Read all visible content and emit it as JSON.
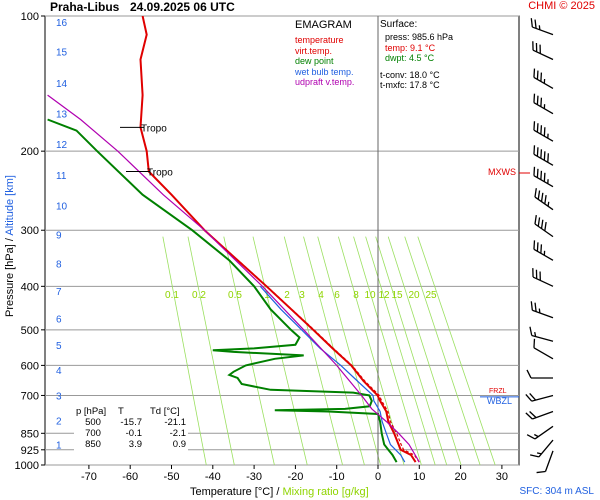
{
  "header": {
    "station": "Praha-Libus",
    "datetime": "24.09.2025 06 UTC",
    "credit": "CHMI © 2025"
  },
  "legend": {
    "title": "EMAGRAM",
    "items": [
      {
        "label": "temperature",
        "color": "#e00000"
      },
      {
        "label": "virt.temp.",
        "color": "#e00000"
      },
      {
        "label": "dew point",
        "color": "#008000"
      },
      {
        "label": "wet bulb temp.",
        "color": "#2060e0"
      },
      {
        "label": "udpraft v.temp.",
        "color": "#b000b0"
      }
    ]
  },
  "surface": {
    "title": "Surface:",
    "lines": [
      {
        "text": "press: 985.6 hPa",
        "color": "#000000"
      },
      {
        "text": "temp: 9.1 °C",
        "color": "#e00000"
      },
      {
        "text": "dwpt: 4.5 °C",
        "color": "#008000"
      },
      {
        "text": "t-conv: 18.0 °C",
        "color": "#000000"
      },
      {
        "text": "t-mxfc: 17.8 °C",
        "color": "#000000"
      }
    ]
  },
  "table": {
    "headers": [
      "p [hPa]",
      "T",
      "Td [°C]"
    ],
    "rows": [
      [
        "500",
        "-15.7",
        "-21.1"
      ],
      [
        "700",
        "-0.1",
        "-2.1"
      ],
      [
        "850",
        "3.9",
        "0.9"
      ]
    ]
  },
  "labels": {
    "y_axis_pressure": "Pressure [hPa]",
    "y_axis_sep": " / ",
    "y_axis_altitude": "Altitude [km]",
    "x_axis_temp": "Temperature [°C]",
    "x_axis_sep": " / ",
    "x_axis_mix": "Mixing ratio [g/kg]",
    "sfc": "SFC: 304 m ASL",
    "mxws": "MXWS",
    "wbzl": "WBZL",
    "frzl": "FRZL"
  },
  "chart_data": {
    "type": "line",
    "title": "",
    "xlabel": "Temperature [°C] / Mixing ratio [g/kg]",
    "ylabel": "Pressure [hPa] / Altitude [km]",
    "y_scale": "log",
    "xlim": [
      -80,
      35
    ],
    "ylim": [
      1000,
      100
    ],
    "x_ticks": [
      -70,
      -60,
      -50,
      -40,
      -30,
      -20,
      -10,
      0,
      10,
      20,
      30
    ],
    "pressure_ticks": [
      100,
      200,
      300,
      400,
      500,
      600,
      700,
      850,
      925,
      1000
    ],
    "altitude_km_ticks": [
      1,
      2,
      3,
      4,
      5,
      6,
      7,
      8,
      9,
      10,
      11,
      12,
      13,
      14,
      15,
      16
    ],
    "altitude_pressure": [
      900,
      795,
      700,
      615,
      540,
      472,
      410,
      356,
      307,
      264,
      226,
      193,
      165,
      141,
      120,
      103
    ],
    "mixing_ratio_labels": [
      "0.1",
      "0.2",
      "0.5",
      "1",
      "2",
      "3",
      "4",
      "6",
      "8",
      "10",
      "12",
      "15",
      "20",
      "25"
    ],
    "mixing_ratio_values": [
      0.1,
      0.2,
      0.5,
      1,
      2,
      3,
      4,
      6,
      8,
      10,
      12,
      15,
      20,
      25
    ],
    "tropopause": [
      {
        "label": "Tropo",
        "pressure": 177
      },
      {
        "label": "Tropo",
        "pressure": 222
      }
    ],
    "series": [
      {
        "name": "temperature",
        "color": "#e00000",
        "points": [
          [
            985,
            9.1
          ],
          [
            950,
            8.0
          ],
          [
            925,
            5.5
          ],
          [
            900,
            5.0
          ],
          [
            850,
            3.9
          ],
          [
            800,
            2.5
          ],
          [
            760,
            2.0
          ],
          [
            720,
            0.5
          ],
          [
            700,
            -0.1
          ],
          [
            650,
            -3.5
          ],
          [
            600,
            -6.5
          ],
          [
            550,
            -11
          ],
          [
            500,
            -15.7
          ],
          [
            450,
            -21
          ],
          [
            400,
            -27
          ],
          [
            350,
            -34
          ],
          [
            300,
            -42
          ],
          [
            250,
            -50
          ],
          [
            222,
            -55.5
          ],
          [
            200,
            -56
          ],
          [
            177,
            -57.5
          ],
          [
            150,
            -57
          ],
          [
            125,
            -57.5
          ],
          [
            110,
            -56
          ],
          [
            100,
            -57
          ]
        ]
      },
      {
        "name": "virt.temp.",
        "color": "#e00000",
        "points": [
          [
            985,
            10
          ],
          [
            950,
            8.8
          ],
          [
            925,
            6.2
          ],
          [
            900,
            5.6
          ],
          [
            850,
            4.5
          ],
          [
            800,
            3.0
          ],
          [
            760,
            2.4
          ],
          [
            720,
            0.9
          ],
          [
            700,
            0.3
          ],
          [
            650,
            -3.2
          ],
          [
            600,
            -6.3
          ],
          [
            550,
            -10.8
          ],
          [
            500,
            -15.5
          ],
          [
            450,
            -20.9
          ],
          [
            400,
            -26.9
          ],
          [
            350,
            -33.9
          ],
          [
            300,
            -42
          ]
        ]
      },
      {
        "name": "dew point",
        "color": "#008000",
        "points": [
          [
            985,
            4.5
          ],
          [
            950,
            3.5
          ],
          [
            925,
            2.5
          ],
          [
            900,
            1.5
          ],
          [
            850,
            0.9
          ],
          [
            800,
            0.5
          ],
          [
            770,
            0.0
          ],
          [
            760,
            -12
          ],
          [
            755,
            -25
          ],
          [
            750,
            -8
          ],
          [
            740,
            -2
          ],
          [
            720,
            -1.5
          ],
          [
            700,
            -2.1
          ],
          [
            690,
            -6
          ],
          [
            680,
            -26
          ],
          [
            660,
            -33
          ],
          [
            640,
            -34
          ],
          [
            630,
            -36
          ],
          [
            620,
            -35
          ],
          [
            600,
            -32
          ],
          [
            580,
            -25
          ],
          [
            570,
            -18
          ],
          [
            560,
            -35
          ],
          [
            555,
            -40
          ],
          [
            550,
            -30
          ],
          [
            540,
            -20
          ],
          [
            520,
            -19
          ],
          [
            500,
            -21.1
          ],
          [
            450,
            -26
          ],
          [
            400,
            -30
          ],
          [
            350,
            -36
          ],
          [
            300,
            -45
          ],
          [
            250,
            -57
          ],
          [
            200,
            -68
          ],
          [
            180,
            -73
          ],
          [
            170,
            -80
          ]
        ]
      },
      {
        "name": "wet bulb temp.",
        "color": "#2060e0",
        "points": [
          [
            985,
            6.5
          ],
          [
            950,
            5.5
          ],
          [
            900,
            3.0
          ],
          [
            850,
            2.0
          ],
          [
            800,
            1.0
          ],
          [
            760,
            0.5
          ],
          [
            720,
            -1.0
          ],
          [
            700,
            -1.2
          ],
          [
            650,
            -5
          ],
          [
            600,
            -9
          ],
          [
            550,
            -14
          ],
          [
            500,
            -18.5
          ],
          [
            450,
            -23.5
          ],
          [
            400,
            -28.5
          ]
        ]
      },
      {
        "name": "udpraft v.temp.",
        "color": "#b000b0",
        "points": [
          [
            985,
            10
          ],
          [
            950,
            9
          ],
          [
            900,
            7.5
          ],
          [
            850,
            5
          ],
          [
            800,
            2
          ],
          [
            750,
            -1.5
          ],
          [
            700,
            -4
          ],
          [
            600,
            -10
          ],
          [
            500,
            -18
          ],
          [
            400,
            -28
          ],
          [
            300,
            -42
          ],
          [
            250,
            -52
          ],
          [
            200,
            -63
          ],
          [
            170,
            -72
          ],
          [
            150,
            -80
          ]
        ]
      }
    ]
  },
  "wind_barbs": [
    {
      "pressure": 930,
      "dir": 200,
      "speed": 10
    },
    {
      "pressure": 880,
      "dir": 220,
      "speed": 15
    },
    {
      "pressure": 820,
      "dir": 235,
      "speed": 15
    },
    {
      "pressure": 760,
      "dir": 250,
      "speed": 20
    },
    {
      "pressure": 700,
      "dir": 255,
      "speed": 20
    },
    {
      "pressure": 640,
      "dir": 270,
      "speed": 10
    },
    {
      "pressure": 580,
      "dir": 300,
      "speed": 10
    },
    {
      "pressure": 530,
      "dir": 285,
      "speed": 15
    },
    {
      "pressure": 470,
      "dir": 290,
      "speed": 25
    },
    {
      "pressure": 400,
      "dir": 295,
      "speed": 30
    },
    {
      "pressure": 350,
      "dir": 300,
      "speed": 35
    },
    {
      "pressure": 310,
      "dir": 305,
      "speed": 40
    },
    {
      "pressure": 270,
      "dir": 305,
      "speed": 45
    },
    {
      "pressure": 240,
      "dir": 300,
      "speed": 45
    },
    {
      "pressure": 215,
      "dir": 300,
      "speed": 50
    },
    {
      "pressure": 190,
      "dir": 300,
      "speed": 45
    },
    {
      "pressure": 165,
      "dir": 300,
      "speed": 35
    },
    {
      "pressure": 145,
      "dir": 300,
      "speed": 35
    },
    {
      "pressure": 125,
      "dir": 295,
      "speed": 30
    },
    {
      "pressure": 110,
      "dir": 290,
      "speed": 25
    }
  ]
}
